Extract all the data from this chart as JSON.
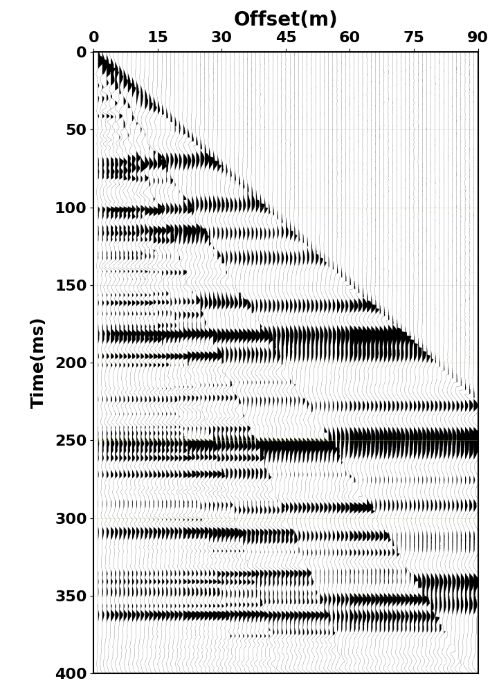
{
  "title": "Offset(m)",
  "ylabel": "Time(ms)",
  "xlabel": "Offset(m)",
  "x_ticks": [
    0,
    15,
    30,
    45,
    60,
    75,
    90
  ],
  "y_ticks": [
    0,
    50,
    100,
    150,
    200,
    250,
    300,
    350,
    400
  ],
  "xlim": [
    0,
    90
  ],
  "ylim": [
    0,
    400
  ],
  "n_offsets": 90,
  "dt_ms": 0.5,
  "n_samples": 801,
  "background_color": "#ffffff",
  "title_fontsize": 20,
  "label_fontsize": 18,
  "tick_fontsize": 16,
  "modes": [
    {
      "v": 400,
      "f0": 25,
      "amp": 2.5,
      "decay": 0.008
    },
    {
      "v": 220,
      "f0": 40,
      "amp": 2.0,
      "decay": 0.006
    },
    {
      "v": 150,
      "f0": 60,
      "amp": 1.8,
      "decay": 0.005
    },
    {
      "v": 110,
      "f0": 80,
      "amp": 1.4,
      "decay": 0.004
    },
    {
      "v": 85,
      "f0": 100,
      "amp": 1.1,
      "decay": 0.003
    }
  ],
  "noise_level": 0.015,
  "trace_scale": 1.4,
  "clip_val": 0.98
}
